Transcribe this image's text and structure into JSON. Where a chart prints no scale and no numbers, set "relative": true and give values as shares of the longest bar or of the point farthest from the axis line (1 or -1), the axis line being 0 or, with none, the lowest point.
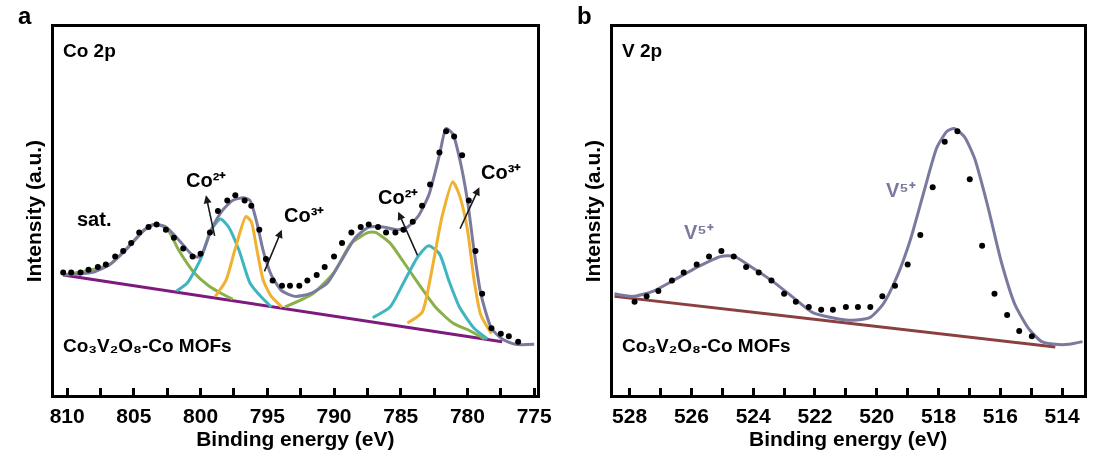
{
  "chart_data": [
    {
      "type": "line",
      "title": "a",
      "xlabel": "Binding energy (eV)",
      "ylabel": "Intensity (a.u.)",
      "relative": true,
      "tick_labels": "x",
      "xlim": [
        811,
        774.8
      ],
      "xticks": [
        810,
        {
          "value": 807.5,
          "label": null
        },
        805,
        {
          "value": 802.5,
          "label": null
        },
        800,
        {
          "value": 797.5,
          "label": null
        },
        795,
        {
          "value": 792.5,
          "label": null
        },
        790,
        {
          "value": 787.5,
          "label": null
        },
        785,
        {
          "value": 782.5,
          "label": null
        },
        780,
        {
          "value": 777.5,
          "label": null
        },
        775
      ],
      "annotations": [
        "Co 2p",
        "Co₃V₂O₈-Co MOFs",
        "sat.",
        "Co²⁺",
        "Co³⁺",
        "Co²⁺",
        "Co³⁺"
      ],
      "series": [
        {
          "marker": "none",
          "color": "#7d1a7d",
          "x": [
            810.3,
            777.4
          ],
          "values": [
            0.45,
            0.2
          ]
        },
        {
          "marker": "none",
          "color": "#8ab04a",
          "x": [
            810.3,
            806.8,
            804.2,
            803.5,
            802.6,
            801.6,
            800.5,
            799.4,
            798.4,
            797.6
          ],
          "values": [
            0.45,
            0.49,
            0.62,
            0.64,
            0.63,
            0.54,
            0.46,
            0.41,
            0.38,
            0.36
          ]
        },
        {
          "marker": "none",
          "color": "#3fb5c0",
          "x": [
            801.8,
            801.0,
            800.0,
            799.2,
            798.5,
            797.9,
            797.1,
            796.3,
            795.5,
            794.7
          ],
          "values": [
            0.39,
            0.42,
            0.51,
            0.62,
            0.66,
            0.63,
            0.54,
            0.42,
            0.37,
            0.33
          ]
        },
        {
          "marker": "none",
          "color": "#f0b030",
          "x": [
            798.9,
            798.1,
            797.4,
            796.6,
            796.2,
            795.8,
            795.3,
            794.7,
            793.9
          ],
          "values": [
            0.37,
            0.43,
            0.55,
            0.67,
            0.65,
            0.55,
            0.43,
            0.37,
            0.33
          ]
        },
        {
          "marker": "none",
          "color": "#8ab04a",
          "x": [
            793.7,
            791.6,
            790.0,
            788.7,
            787.4,
            786.9,
            785.8,
            784.8,
            783.7,
            782.4,
            781.1,
            779.8,
            778.7
          ],
          "values": [
            0.33,
            0.38,
            0.46,
            0.57,
            0.61,
            0.61,
            0.57,
            0.5,
            0.42,
            0.33,
            0.27,
            0.24,
            0.21
          ]
        },
        {
          "marker": "none",
          "color": "#3fb5c0",
          "x": [
            787.1,
            785.8,
            784.8,
            783.7,
            782.9,
            782.1,
            781.4,
            780.6,
            779.5,
            778.5
          ],
          "values": [
            0.29,
            0.33,
            0.42,
            0.52,
            0.56,
            0.53,
            0.43,
            0.33,
            0.25,
            0.21
          ]
        },
        {
          "marker": "none",
          "color": "#f0b030",
          "x": [
            784.5,
            783.4,
            782.7,
            781.9,
            781.1,
            780.6,
            780.0,
            779.5,
            779.0,
            778.2
          ],
          "values": [
            0.27,
            0.31,
            0.46,
            0.67,
            0.8,
            0.75,
            0.62,
            0.43,
            0.3,
            0.23
          ]
        },
        {
          "marker": "none",
          "color": "#7a7a9e",
          "x": [
            810.3,
            808.1,
            806.8,
            805.5,
            804.2,
            803.5,
            802.6,
            801.6,
            800.5,
            800.0,
            799.2,
            798.4,
            797.6,
            796.8,
            796.3,
            795.8,
            795.3,
            794.7,
            793.9,
            792.9,
            791.8,
            790.5,
            789.5,
            788.4,
            787.4,
            786.3,
            785.3,
            784.5,
            783.7,
            782.9,
            782.1,
            781.6,
            781.1,
            780.6,
            780.0,
            779.5,
            779.0,
            778.2,
            777.4,
            776.4,
            775.0
          ],
          "values": [
            0.45,
            0.46,
            0.49,
            0.55,
            0.62,
            0.64,
            0.63,
            0.58,
            0.52,
            0.52,
            0.62,
            0.69,
            0.73,
            0.74,
            0.73,
            0.65,
            0.54,
            0.45,
            0.39,
            0.37,
            0.38,
            0.42,
            0.5,
            0.59,
            0.63,
            0.63,
            0.62,
            0.63,
            0.67,
            0.75,
            0.9,
            1.0,
            0.98,
            0.89,
            0.73,
            0.54,
            0.38,
            0.25,
            0.21,
            0.19,
            0.19
          ]
        },
        {
          "type": "scatter",
          "marker": "circle",
          "color": "#000000",
          "x": [
            810.3,
            809.7,
            809.0,
            808.4,
            807.7,
            807.1,
            806.4,
            805.8,
            805.2,
            804.6,
            803.9,
            803.3,
            802.6,
            802.0,
            801.3,
            800.6,
            800.0,
            799.3,
            798.7,
            798.0,
            797.4,
            796.7,
            796.2,
            795.6,
            795.1,
            794.6,
            793.9,
            793.3,
            792.6,
            792.0,
            791.3,
            790.7,
            790.0,
            789.4,
            788.7,
            788.0,
            787.4,
            786.7,
            786.1,
            785.4,
            784.8,
            784.1,
            783.4,
            782.8,
            782.1,
            781.6,
            781.0,
            780.4,
            779.9,
            779.4,
            778.9,
            778.2,
            777.5,
            776.9,
            776.2
          ],
          "values": [
            0.46,
            0.46,
            0.46,
            0.47,
            0.48,
            0.49,
            0.52,
            0.54,
            0.57,
            0.61,
            0.63,
            0.64,
            0.62,
            0.59,
            0.55,
            0.52,
            0.53,
            0.61,
            0.69,
            0.73,
            0.75,
            0.73,
            0.71,
            0.62,
            0.51,
            0.43,
            0.41,
            0.41,
            0.41,
            0.43,
            0.45,
            0.48,
            0.52,
            0.57,
            0.61,
            0.63,
            0.64,
            0.63,
            0.61,
            0.61,
            0.62,
            0.65,
            0.71,
            0.79,
            0.91,
            0.99,
            0.97,
            0.9,
            0.73,
            0.54,
            0.38,
            0.25,
            0.23,
            0.22,
            0.2
          ]
        }
      ]
    },
    {
      "type": "line",
      "title": "b",
      "xlabel": "Binding energy (eV)",
      "ylabel": "Intensity (a.u.)",
      "relative": true,
      "tick_labels": "x",
      "xlim": [
        528.55,
        513.3
      ],
      "xticks": [
        528,
        {
          "value": 527,
          "label": null
        },
        526,
        {
          "value": 525,
          "label": null
        },
        524,
        {
          "value": 523,
          "label": null
        },
        522,
        {
          "value": 521,
          "label": null
        },
        520,
        {
          "value": 519,
          "label": null
        },
        518,
        {
          "value": 517,
          "label": null
        },
        516,
        {
          "value": 515,
          "label": null
        },
        514
      ],
      "annotations": [
        "V 2p",
        "Co₃V₂O₈-Co MOFs",
        "V⁵⁺",
        "V⁵⁺"
      ],
      "series": [
        {
          "marker": "none",
          "color": "#8b4040",
          "x": [
            528.49,
            514.22
          ],
          "values": [
            0.37,
            0.18
          ]
        },
        {
          "marker": "none",
          "color": "#7a7a9e",
          "x": [
            528.49,
            527.89,
            527.23,
            526.58,
            525.81,
            525.05,
            524.61,
            524.06,
            523.41,
            522.75,
            522.09,
            521.44,
            520.78,
            520.23,
            519.8,
            519.36,
            518.92,
            518.48,
            518.05,
            517.72,
            517.5,
            517.17,
            516.84,
            516.41,
            515.97,
            515.53,
            515.09,
            514.66,
            514.22,
            513.78,
            513.34
          ],
          "values": [
            0.38,
            0.37,
            0.39,
            0.43,
            0.48,
            0.52,
            0.52,
            0.48,
            0.43,
            0.37,
            0.31,
            0.29,
            0.28,
            0.29,
            0.34,
            0.44,
            0.58,
            0.76,
            0.93,
            0.99,
            1.0,
            0.97,
            0.89,
            0.71,
            0.5,
            0.34,
            0.25,
            0.2,
            0.19,
            0.19,
            0.2
          ]
        },
        {
          "type": "scatter",
          "marker": "circle",
          "color": "#000000",
          "x": [
            527.84,
            527.45,
            527.07,
            526.63,
            526.25,
            525.83,
            525.43,
            525.03,
            524.63,
            524.23,
            523.82,
            523.41,
            523.0,
            522.62,
            522.2,
            521.8,
            521.42,
            521.0,
            520.61,
            520.21,
            519.82,
            519.41,
            519.0,
            518.59,
            518.19,
            517.8,
            517.39,
            516.99,
            516.59,
            516.19,
            515.78,
            515.39,
            514.98
          ],
          "values": [
            0.35,
            0.37,
            0.39,
            0.43,
            0.46,
            0.49,
            0.52,
            0.54,
            0.52,
            0.48,
            0.46,
            0.43,
            0.38,
            0.35,
            0.33,
            0.32,
            0.32,
            0.33,
            0.33,
            0.33,
            0.37,
            0.41,
            0.49,
            0.6,
            0.78,
            0.95,
            0.99,
            0.81,
            0.56,
            0.38,
            0.3,
            0.24,
            0.22
          ]
        }
      ]
    }
  ]
}
